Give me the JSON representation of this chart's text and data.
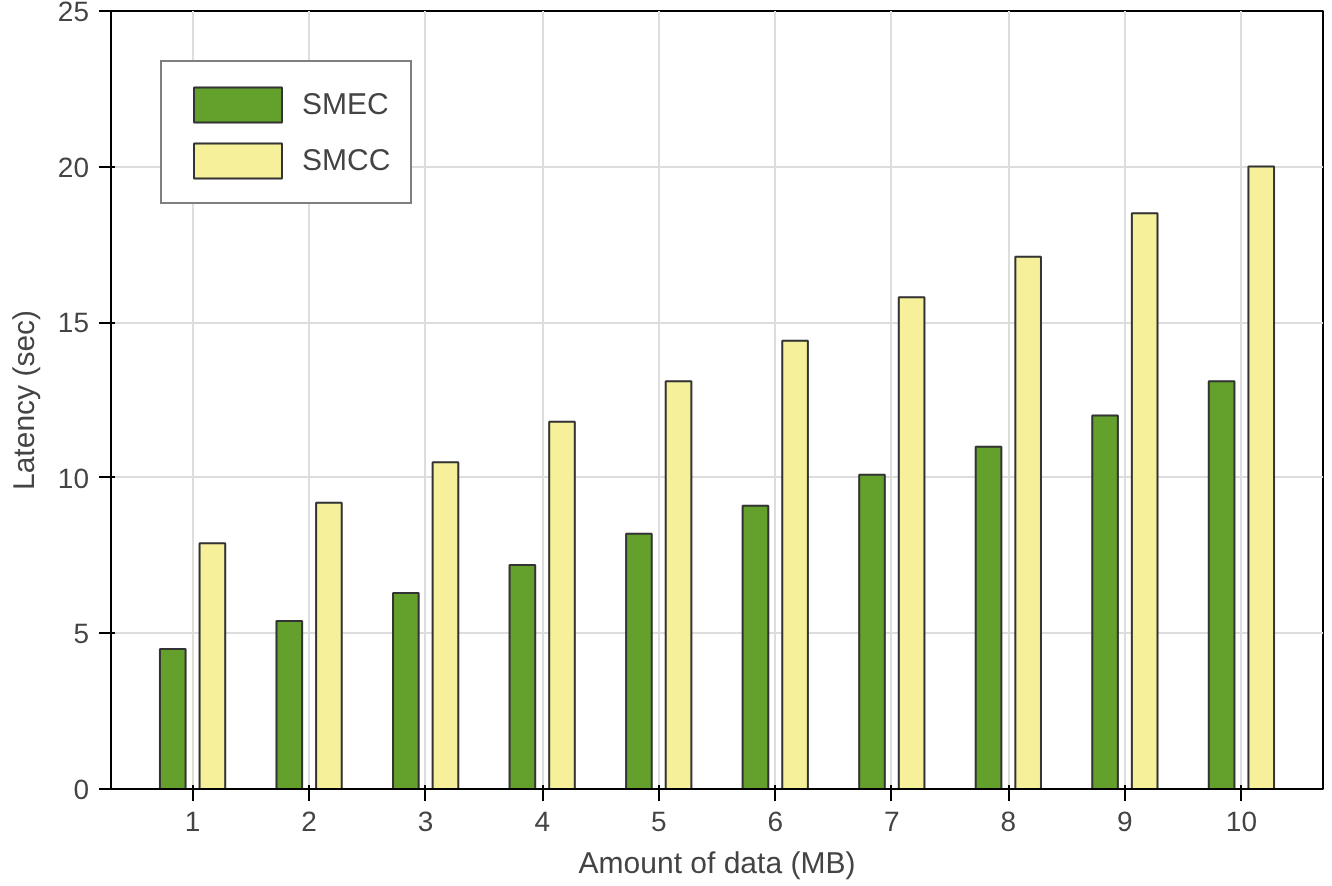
{
  "chart_data": {
    "type": "bar",
    "xlabel": "Amount of data (MB)",
    "ylabel": "Latency (sec)",
    "categories": [
      "1",
      "2",
      "3",
      "4",
      "5",
      "6",
      "7",
      "8",
      "9",
      "10"
    ],
    "series": [
      {
        "name": "SMEC",
        "color": "#63a02c",
        "values": [
          4.5,
          5.4,
          6.3,
          7.2,
          8.2,
          9.1,
          10.1,
          11.0,
          12.0,
          13.1
        ]
      },
      {
        "name": "SMCC",
        "color": "#f6f09a",
        "values": [
          7.9,
          9.2,
          10.5,
          11.8,
          13.1,
          14.4,
          15.8,
          17.1,
          18.5,
          20.0
        ]
      }
    ],
    "ylim": [
      0,
      25
    ],
    "yticks": [
      0,
      5,
      10,
      15,
      20,
      25
    ],
    "grid": true,
    "legend": "top left"
  }
}
